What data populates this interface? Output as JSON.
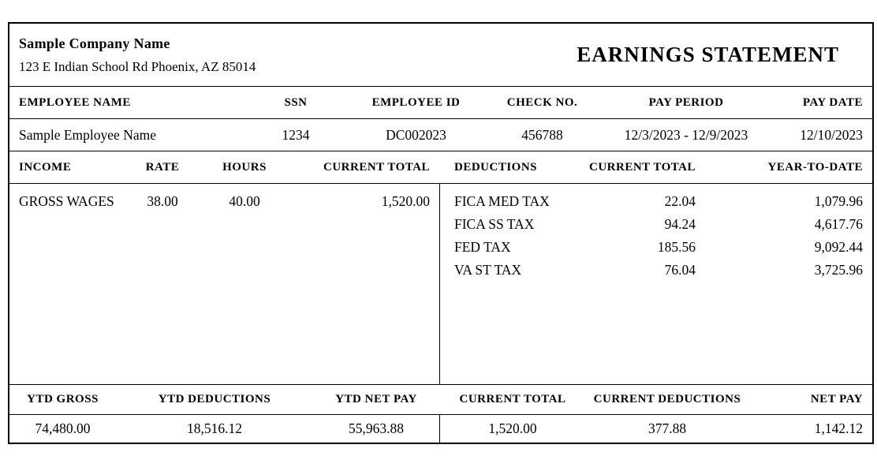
{
  "colors": {
    "text": "#000000",
    "border": "#000000",
    "background": "#ffffff"
  },
  "company": {
    "name": "Sample Company Name",
    "address": "123 E Indian School Rd Phoenix, AZ 85014"
  },
  "title": "EARNINGS STATEMENT",
  "employee_info": {
    "headers": {
      "employee_name": "EMPLOYEE NAME",
      "ssn": "SSN",
      "employee_id": "EMPLOYEE ID",
      "check_no": "CHECK NO.",
      "pay_period": "PAY PERIOD",
      "pay_date": "PAY DATE"
    },
    "values": {
      "employee_name": "Sample Employee Name",
      "ssn": "1234",
      "employee_id": "DC002023",
      "check_no": "456788",
      "pay_period": "12/3/2023 - 12/9/2023",
      "pay_date": "12/10/2023"
    }
  },
  "earnings": {
    "headers": {
      "income": "INCOME",
      "rate": "RATE",
      "hours": "HOURS",
      "current_total": "CURRENT TOTAL"
    },
    "rows": [
      {
        "income": "GROSS WAGES",
        "rate": "38.00",
        "hours": "40.00",
        "current_total": "1,520.00"
      }
    ]
  },
  "deductions": {
    "headers": {
      "name": "DEDUCTIONS",
      "current_total": "CURRENT TOTAL",
      "year_to_date": "YEAR-TO-DATE"
    },
    "rows": [
      {
        "name": "FICA MED TAX",
        "current_total": "22.04",
        "year_to_date": "1,079.96"
      },
      {
        "name": "FICA SS TAX",
        "current_total": "94.24",
        "year_to_date": "4,617.76"
      },
      {
        "name": "FED TAX",
        "current_total": "185.56",
        "year_to_date": "9,092.44"
      },
      {
        "name": "VA ST TAX",
        "current_total": "76.04",
        "year_to_date": "3,725.96"
      }
    ]
  },
  "summary": {
    "headers": {
      "ytd_gross": "YTD GROSS",
      "ytd_deductions": "YTD DEDUCTIONS",
      "ytd_net_pay": "YTD NET PAY",
      "current_total": "CURRENT TOTAL",
      "current_deductions": "CURRENT DEDUCTIONS",
      "net_pay": "NET PAY"
    },
    "values": {
      "ytd_gross": "74,480.00",
      "ytd_deductions": "18,516.12",
      "ytd_net_pay": "55,963.88",
      "current_total": "1,520.00",
      "current_deductions": "377.88",
      "net_pay": "1,142.12"
    }
  }
}
